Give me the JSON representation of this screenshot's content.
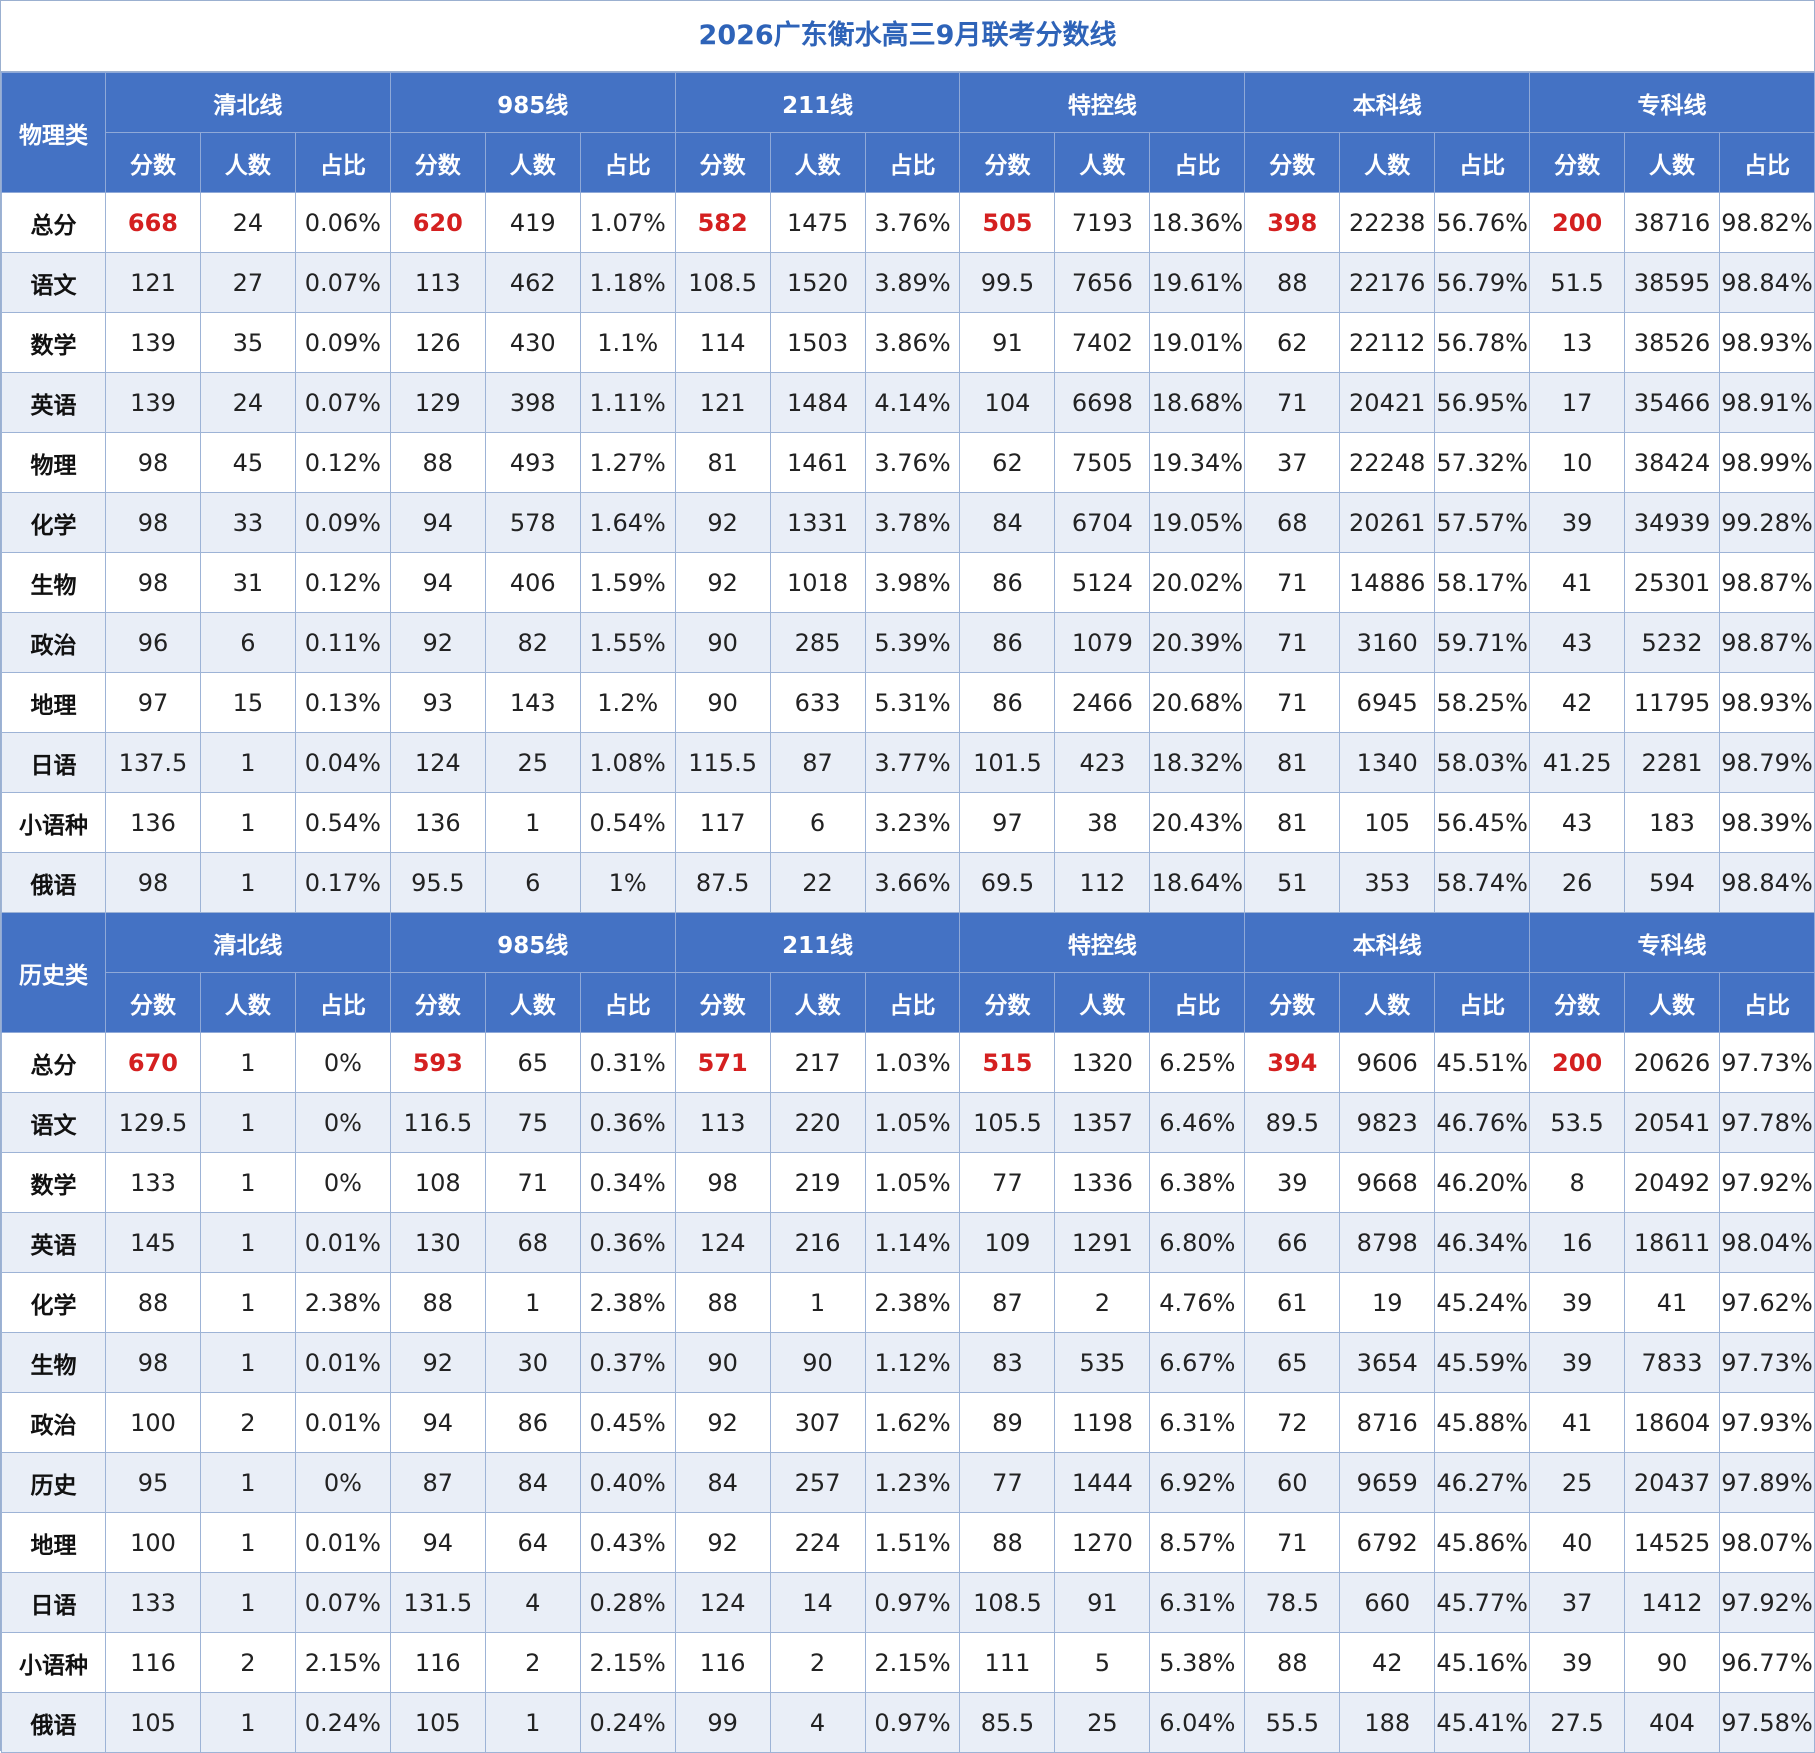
{
  "title": "2026广东衡水高三9月联考分数线",
  "groups": [
    "清北线",
    "985线",
    "211线",
    "特控线",
    "本科线",
    "专科线"
  ],
  "subheaders": [
    "分数",
    "人数",
    "占比"
  ],
  "sections": [
    {
      "category": "物理类",
      "rows": [
        {
          "subject": "总分",
          "cells": [
            "668",
            "24",
            "0.06%",
            "620",
            "419",
            "1.07%",
            "582",
            "1475",
            "3.76%",
            "505",
            "7193",
            "18.36%",
            "398",
            "22238",
            "56.76%",
            "200",
            "38716",
            "98.82%"
          ]
        },
        {
          "subject": "语文",
          "cells": [
            "121",
            "27",
            "0.07%",
            "113",
            "462",
            "1.18%",
            "108.5",
            "1520",
            "3.89%",
            "99.5",
            "7656",
            "19.61%",
            "88",
            "22176",
            "56.79%",
            "51.5",
            "38595",
            "98.84%"
          ]
        },
        {
          "subject": "数学",
          "cells": [
            "139",
            "35",
            "0.09%",
            "126",
            "430",
            "1.1%",
            "114",
            "1503",
            "3.86%",
            "91",
            "7402",
            "19.01%",
            "62",
            "22112",
            "56.78%",
            "13",
            "38526",
            "98.93%"
          ]
        },
        {
          "subject": "英语",
          "cells": [
            "139",
            "24",
            "0.07%",
            "129",
            "398",
            "1.11%",
            "121",
            "1484",
            "4.14%",
            "104",
            "6698",
            "18.68%",
            "71",
            "20421",
            "56.95%",
            "17",
            "35466",
            "98.91%"
          ]
        },
        {
          "subject": "物理",
          "cells": [
            "98",
            "45",
            "0.12%",
            "88",
            "493",
            "1.27%",
            "81",
            "1461",
            "3.76%",
            "62",
            "7505",
            "19.34%",
            "37",
            "22248",
            "57.32%",
            "10",
            "38424",
            "98.99%"
          ]
        },
        {
          "subject": "化学",
          "cells": [
            "98",
            "33",
            "0.09%",
            "94",
            "578",
            "1.64%",
            "92",
            "1331",
            "3.78%",
            "84",
            "6704",
            "19.05%",
            "68",
            "20261",
            "57.57%",
            "39",
            "34939",
            "99.28%"
          ]
        },
        {
          "subject": "生物",
          "cells": [
            "98",
            "31",
            "0.12%",
            "94",
            "406",
            "1.59%",
            "92",
            "1018",
            "3.98%",
            "86",
            "5124",
            "20.02%",
            "71",
            "14886",
            "58.17%",
            "41",
            "25301",
            "98.87%"
          ]
        },
        {
          "subject": "政治",
          "cells": [
            "96",
            "6",
            "0.11%",
            "92",
            "82",
            "1.55%",
            "90",
            "285",
            "5.39%",
            "86",
            "1079",
            "20.39%",
            "71",
            "3160",
            "59.71%",
            "43",
            "5232",
            "98.87%"
          ]
        },
        {
          "subject": "地理",
          "cells": [
            "97",
            "15",
            "0.13%",
            "93",
            "143",
            "1.2%",
            "90",
            "633",
            "5.31%",
            "86",
            "2466",
            "20.68%",
            "71",
            "6945",
            "58.25%",
            "42",
            "11795",
            "98.93%"
          ]
        },
        {
          "subject": "日语",
          "cells": [
            "137.5",
            "1",
            "0.04%",
            "124",
            "25",
            "1.08%",
            "115.5",
            "87",
            "3.77%",
            "101.5",
            "423",
            "18.32%",
            "81",
            "1340",
            "58.03%",
            "41.25",
            "2281",
            "98.79%"
          ]
        },
        {
          "subject": "小语种",
          "cells": [
            "136",
            "1",
            "0.54%",
            "136",
            "1",
            "0.54%",
            "117",
            "6",
            "3.23%",
            "97",
            "38",
            "20.43%",
            "81",
            "105",
            "56.45%",
            "43",
            "183",
            "98.39%"
          ]
        },
        {
          "subject": "俄语",
          "cells": [
            "98",
            "1",
            "0.17%",
            "95.5",
            "6",
            "1%",
            "87.5",
            "22",
            "3.66%",
            "69.5",
            "112",
            "18.64%",
            "51",
            "353",
            "58.74%",
            "26",
            "594",
            "98.84%"
          ]
        }
      ]
    },
    {
      "category": "历史类",
      "rows": [
        {
          "subject": "总分",
          "cells": [
            "670",
            "1",
            "0%",
            "593",
            "65",
            "0.31%",
            "571",
            "217",
            "1.03%",
            "515",
            "1320",
            "6.25%",
            "394",
            "9606",
            "45.51%",
            "200",
            "20626",
            "97.73%"
          ]
        },
        {
          "subject": "语文",
          "cells": [
            "129.5",
            "1",
            "0%",
            "116.5",
            "75",
            "0.36%",
            "113",
            "220",
            "1.05%",
            "105.5",
            "1357",
            "6.46%",
            "89.5",
            "9823",
            "46.76%",
            "53.5",
            "20541",
            "97.78%"
          ]
        },
        {
          "subject": "数学",
          "cells": [
            "133",
            "1",
            "0%",
            "108",
            "71",
            "0.34%",
            "98",
            "219",
            "1.05%",
            "77",
            "1336",
            "6.38%",
            "39",
            "9668",
            "46.20%",
            "8",
            "20492",
            "97.92%"
          ]
        },
        {
          "subject": "英语",
          "cells": [
            "145",
            "1",
            "0.01%",
            "130",
            "68",
            "0.36%",
            "124",
            "216",
            "1.14%",
            "109",
            "1291",
            "6.80%",
            "66",
            "8798",
            "46.34%",
            "16",
            "18611",
            "98.04%"
          ]
        },
        {
          "subject": "化学",
          "cells": [
            "88",
            "1",
            "2.38%",
            "88",
            "1",
            "2.38%",
            "88",
            "1",
            "2.38%",
            "87",
            "2",
            "4.76%",
            "61",
            "19",
            "45.24%",
            "39",
            "41",
            "97.62%"
          ]
        },
        {
          "subject": "生物",
          "cells": [
            "98",
            "1",
            "0.01%",
            "92",
            "30",
            "0.37%",
            "90",
            "90",
            "1.12%",
            "83",
            "535",
            "6.67%",
            "65",
            "3654",
            "45.59%",
            "39",
            "7833",
            "97.73%"
          ]
        },
        {
          "subject": "政治",
          "cells": [
            "100",
            "2",
            "0.01%",
            "94",
            "86",
            "0.45%",
            "92",
            "307",
            "1.62%",
            "89",
            "1198",
            "6.31%",
            "72",
            "8716",
            "45.88%",
            "41",
            "18604",
            "97.93%"
          ]
        },
        {
          "subject": "历史",
          "cells": [
            "95",
            "1",
            "0%",
            "87",
            "84",
            "0.40%",
            "84",
            "257",
            "1.23%",
            "77",
            "1444",
            "6.92%",
            "60",
            "9659",
            "46.27%",
            "25",
            "20437",
            "97.89%"
          ]
        },
        {
          "subject": "地理",
          "cells": [
            "100",
            "1",
            "0.01%",
            "94",
            "64",
            "0.43%",
            "92",
            "224",
            "1.51%",
            "88",
            "1270",
            "8.57%",
            "71",
            "6792",
            "45.86%",
            "40",
            "14525",
            "98.07%"
          ]
        },
        {
          "subject": "日语",
          "cells": [
            "133",
            "1",
            "0.07%",
            "131.5",
            "4",
            "0.28%",
            "124",
            "14",
            "0.97%",
            "108.5",
            "91",
            "6.31%",
            "78.5",
            "660",
            "45.77%",
            "37",
            "1412",
            "97.92%"
          ]
        },
        {
          "subject": "小语种",
          "cells": [
            "116",
            "2",
            "2.15%",
            "116",
            "2",
            "2.15%",
            "116",
            "2",
            "2.15%",
            "111",
            "5",
            "5.38%",
            "88",
            "42",
            "45.16%",
            "39",
            "90",
            "96.77%"
          ]
        },
        {
          "subject": "俄语",
          "cells": [
            "105",
            "1",
            "0.24%",
            "105",
            "1",
            "0.24%",
            "99",
            "4",
            "0.97%",
            "85.5",
            "25",
            "6.04%",
            "55.5",
            "188",
            "45.41%",
            "27.5",
            "404",
            "97.58%"
          ]
        }
      ]
    }
  ],
  "colors": {
    "header_bg": "#4472c4",
    "header_text": "#ffffff",
    "category_text": "#ffd22e",
    "title_text": "#2e63b8",
    "highlight_text": "#d42020",
    "alt_row_bg": "#e9eef7"
  }
}
